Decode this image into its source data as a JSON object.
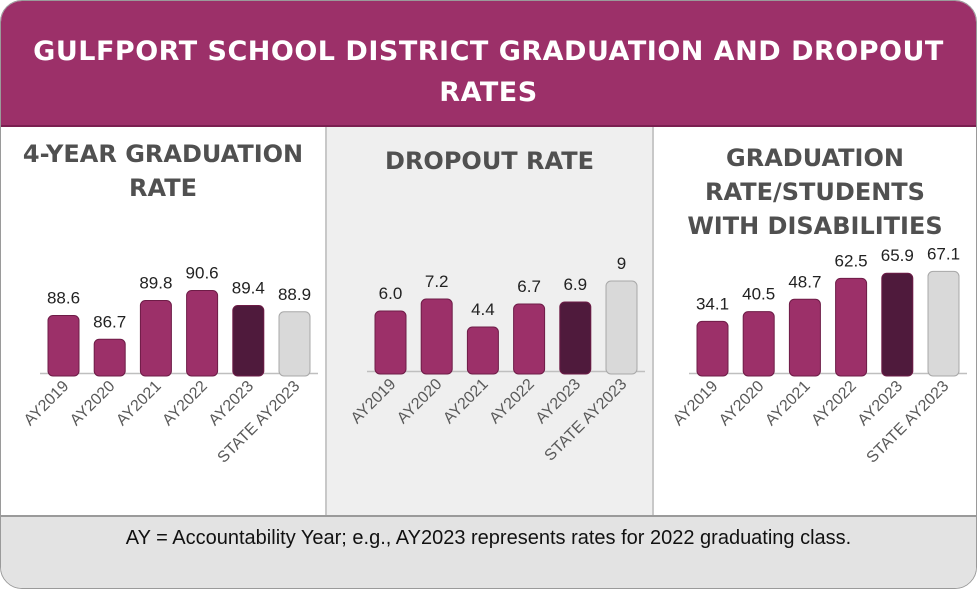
{
  "header": {
    "title": "GULFPORT SCHOOL DISTRICT GRADUATION AND DROPOUT RATES"
  },
  "footer": {
    "note": "AY = Accountability Year; e.g.,  AY2023 represents rates for 2022 graduating class."
  },
  "colors": {
    "district": "#9c3069",
    "current": "#4f1a3c",
    "state": "#d9d9d9"
  },
  "chart_data": [
    {
      "type": "bar",
      "title": "4-YEAR GRADUATION RATE",
      "categories": [
        "AY2019",
        "AY2020",
        "AY2021",
        "AY2022",
        "AY2023",
        "STATE AY2023"
      ],
      "values": [
        88.6,
        86.7,
        89.8,
        90.6,
        89.4,
        88.9
      ],
      "labels": [
        "88.6",
        "86.7",
        "89.8",
        "90.6",
        "89.4",
        "88.9"
      ],
      "ylim": [
        84,
        92
      ]
    },
    {
      "type": "bar",
      "title": "DROPOUT RATE",
      "categories": [
        "AY2019",
        "AY2020",
        "AY2021",
        "AY2022",
        "AY2023",
        "STATE AY2023"
      ],
      "values": [
        6.0,
        7.2,
        4.4,
        6.7,
        6.9,
        9
      ],
      "labels": [
        "6.0",
        "7.2",
        "4.4",
        "6.7",
        "6.9",
        "9"
      ],
      "ylim": [
        0,
        10
      ]
    },
    {
      "type": "bar",
      "title": "GRADUATION RATE/STUDENTS WITH DISABILITIES",
      "categories": [
        "AY2019",
        "AY2020",
        "AY2021",
        "AY2022",
        "AY2023",
        "STATE AY2023"
      ],
      "values": [
        34.1,
        40.5,
        48.7,
        62.5,
        65.9,
        67.1
      ],
      "labels": [
        "34.1",
        "40.5",
        "48.7",
        "62.5",
        "65.9",
        "67.1"
      ],
      "ylim": [
        0,
        70
      ]
    }
  ]
}
